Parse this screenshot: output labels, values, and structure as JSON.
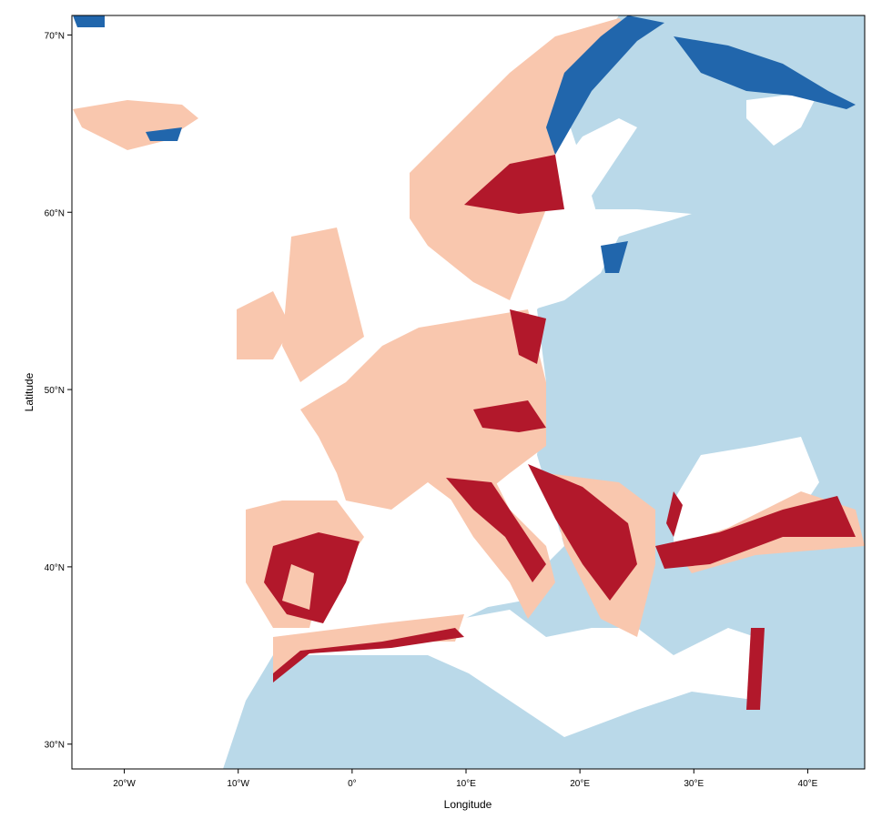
{
  "chart_data": {
    "type": "map",
    "xlabel": "Longitude",
    "ylabel": "Latitude",
    "xlim": [
      -24.6,
      45
    ],
    "ylim": [
      28.6,
      71.1
    ],
    "xticks": [
      {
        "value": -20,
        "label": "20°W"
      },
      {
        "value": -10,
        "label": "10°W"
      },
      {
        "value": 0,
        "label": "0°"
      },
      {
        "value": 10,
        "label": "10°E"
      },
      {
        "value": 20,
        "label": "20°E"
      },
      {
        "value": 30,
        "label": "30°E"
      },
      {
        "value": 40,
        "label": "40°E"
      }
    ],
    "yticks": [
      {
        "value": 30,
        "label": "30°N"
      },
      {
        "value": 40,
        "label": "40°N"
      },
      {
        "value": 50,
        "label": "50°N"
      },
      {
        "value": 60,
        "label": "60°N"
      },
      {
        "value": 70,
        "label": "70°N"
      }
    ]
  }
}
